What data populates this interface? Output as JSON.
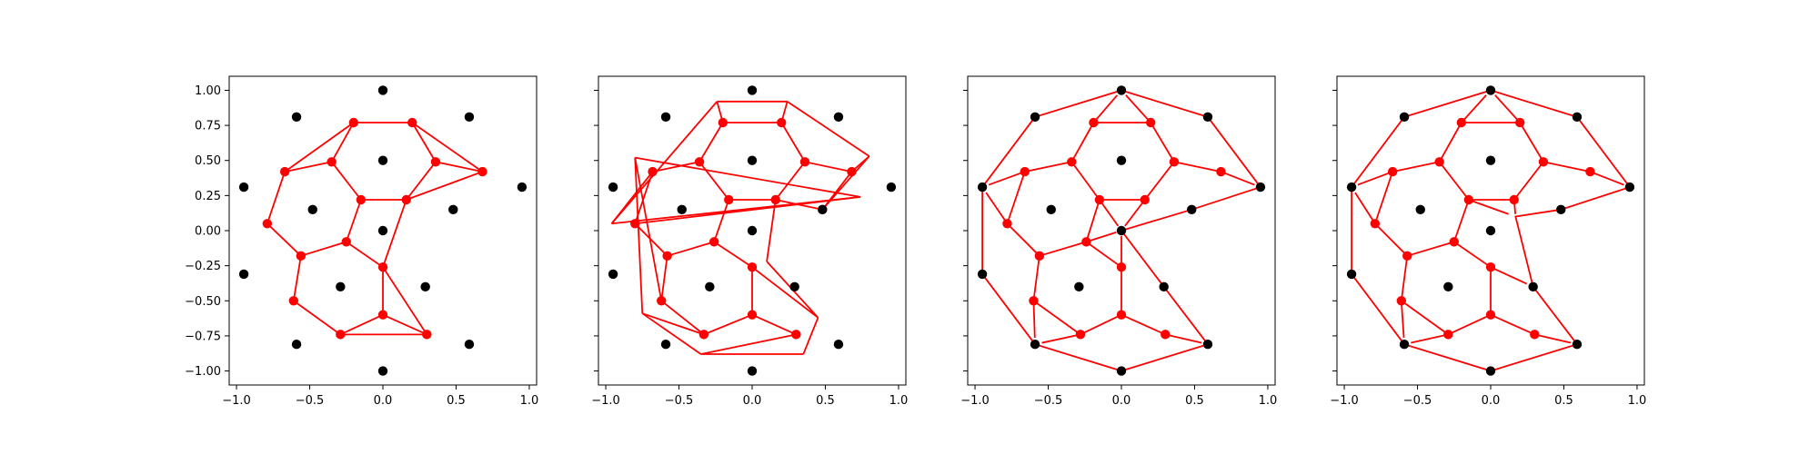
{
  "style": {
    "seed_color": "#000000",
    "vertex_color": "#ff0000",
    "edge_color": "#ff0000",
    "axes_color": "#000000",
    "background": "#ffffff"
  },
  "chart_data": [
    {
      "type": "scatter",
      "panel": 1,
      "title": "",
      "xlabel": "",
      "ylabel": "",
      "xlim": [
        -1.05,
        1.05
      ],
      "ylim": [
        -1.1,
        1.1
      ],
      "xticks": [
        -1.0,
        -0.5,
        0.0,
        0.5,
        1.0
      ],
      "xtick_labels": [
        "−1.0",
        "−0.5",
        "0.0",
        "0.5",
        "1.0"
      ],
      "yticks": [
        -1.0,
        -0.75,
        -0.5,
        -0.25,
        0.0,
        0.25,
        0.5,
        0.75,
        1.0
      ],
      "ytick_labels": [
        "−1.00",
        "−0.75",
        "−0.50",
        "−0.25",
        "0.00",
        "0.25",
        "0.50",
        "0.75",
        "1.00"
      ],
      "show_ytick_labels": true,
      "seed_points": [
        [
          0.0,
          1.0
        ],
        [
          -0.59,
          0.81
        ],
        [
          0.59,
          0.81
        ],
        [
          0.0,
          0.5
        ],
        [
          -0.95,
          0.31
        ],
        [
          0.95,
          0.31
        ],
        [
          -0.48,
          0.15
        ],
        [
          0.48,
          0.15
        ],
        [
          0.0,
          0.0
        ],
        [
          -0.95,
          -0.31
        ],
        [
          -0.29,
          -0.4
        ],
        [
          0.29,
          -0.4
        ],
        [
          -0.59,
          -0.81
        ],
        [
          0.59,
          -0.81
        ],
        [
          0.0,
          -1.0
        ]
      ],
      "vertices": [
        [
          -0.2,
          0.77
        ],
        [
          0.2,
          0.77
        ],
        [
          -0.35,
          0.49
        ],
        [
          0.36,
          0.49
        ],
        [
          -0.67,
          0.42
        ],
        [
          0.68,
          0.42
        ],
        [
          -0.15,
          0.22
        ],
        [
          0.16,
          0.22
        ],
        [
          -0.79,
          0.05
        ],
        [
          -0.56,
          -0.18
        ],
        [
          -0.25,
          -0.08
        ],
        [
          0.0,
          -0.26
        ],
        [
          -0.61,
          -0.5
        ],
        [
          0.0,
          -0.6
        ],
        [
          -0.29,
          -0.74
        ],
        [
          0.3,
          -0.74
        ]
      ],
      "edges": [
        [
          0,
          1
        ],
        [
          0,
          2
        ],
        [
          1,
          3
        ],
        [
          2,
          6
        ],
        [
          3,
          7
        ],
        [
          6,
          7
        ],
        [
          0,
          4
        ],
        [
          1,
          5
        ],
        [
          3,
          5
        ],
        [
          7,
          5
        ],
        [
          2,
          4
        ],
        [
          4,
          8
        ],
        [
          8,
          9
        ],
        [
          9,
          10
        ],
        [
          10,
          6
        ],
        [
          10,
          11
        ],
        [
          7,
          11
        ],
        [
          9,
          12
        ],
        [
          11,
          13
        ],
        [
          11,
          15
        ],
        [
          12,
          14
        ],
        [
          13,
          14
        ],
        [
          13,
          15
        ],
        [
          14,
          15
        ]
      ]
    },
    {
      "type": "scatter",
      "panel": 2,
      "title": "",
      "xlabel": "",
      "ylabel": "",
      "xlim": [
        -1.05,
        1.05
      ],
      "ylim": [
        -1.1,
        1.1
      ],
      "xticks": [
        -1.0,
        -0.5,
        0.0,
        0.5,
        1.0
      ],
      "xtick_labels": [
        "−1.0",
        "−0.5",
        "0.0",
        "0.5",
        "1.0"
      ],
      "yticks": [
        -1.0,
        -0.75,
        -0.5,
        -0.25,
        0.0,
        0.25,
        0.5,
        0.75,
        1.0
      ],
      "ytick_labels": [],
      "show_ytick_labels": false,
      "seed_points": [
        [
          0.0,
          1.0
        ],
        [
          -0.59,
          0.81
        ],
        [
          0.59,
          0.81
        ],
        [
          0.0,
          0.5
        ],
        [
          -0.95,
          0.31
        ],
        [
          0.95,
          0.31
        ],
        [
          -0.48,
          0.15
        ],
        [
          0.48,
          0.15
        ],
        [
          0.0,
          0.0
        ],
        [
          -0.95,
          -0.31
        ],
        [
          -0.29,
          -0.4
        ],
        [
          0.29,
          -0.4
        ],
        [
          -0.59,
          -0.81
        ],
        [
          0.59,
          -0.81
        ],
        [
          0.0,
          -1.0
        ]
      ],
      "vertices": [
        [
          -0.2,
          0.77
        ],
        [
          0.2,
          0.77
        ],
        [
          -0.36,
          0.49
        ],
        [
          0.36,
          0.49
        ],
        [
          -0.68,
          0.42
        ],
        [
          0.68,
          0.42
        ],
        [
          -0.16,
          0.22
        ],
        [
          0.16,
          0.22
        ],
        [
          -0.8,
          0.05
        ],
        [
          -0.58,
          -0.18
        ],
        [
          -0.26,
          -0.08
        ],
        [
          0.0,
          -0.26
        ],
        [
          -0.62,
          -0.5
        ],
        [
          0.0,
          -0.6
        ],
        [
          -0.33,
          -0.74
        ],
        [
          0.3,
          -0.74
        ],
        [
          0.48,
          0.15
        ]
      ],
      "outline": [
        [
          -0.24,
          0.92
        ],
        [
          0.24,
          0.92
        ],
        [
          0.8,
          0.53
        ],
        [
          0.74,
          0.24
        ],
        [
          -0.96,
          0.05
        ],
        [
          -0.8,
          0.52
        ],
        [
          -0.75,
          -0.59
        ],
        [
          -0.35,
          -0.88
        ],
        [
          0.35,
          -0.88
        ],
        [
          0.45,
          -0.62
        ],
        [
          0.3,
          -0.4
        ],
        [
          0.1,
          -0.22
        ]
      ],
      "edges": [
        [
          0,
          1
        ],
        [
          0,
          2
        ],
        [
          1,
          3
        ],
        [
          2,
          6
        ],
        [
          3,
          7
        ],
        [
          6,
          7
        ],
        [
          3,
          5
        ],
        [
          7,
          16
        ],
        [
          16,
          5
        ],
        [
          2,
          4
        ],
        [
          4,
          8
        ],
        [
          8,
          9
        ],
        [
          9,
          10
        ],
        [
          10,
          6
        ],
        [
          10,
          11
        ],
        [
          9,
          12
        ],
        [
          11,
          13
        ],
        [
          12,
          14
        ],
        [
          13,
          14
        ],
        [
          13,
          15
        ],
        [
          0,
          17
        ],
        [
          17,
          18
        ],
        [
          1,
          18
        ],
        [
          18,
          19
        ],
        [
          19,
          16
        ],
        [
          5,
          19
        ],
        [
          17,
          21
        ],
        [
          21,
          20
        ],
        [
          4,
          21
        ],
        [
          8,
          20
        ],
        [
          20,
          22
        ],
        [
          22,
          12
        ],
        [
          22,
          23
        ],
        [
          23,
          24
        ],
        [
          23,
          14
        ],
        [
          24,
          15
        ],
        [
          24,
          25
        ],
        [
          25,
          26
        ],
        [
          26,
          11
        ],
        [
          26,
          28
        ],
        [
          7,
          28
        ]
      ]
    },
    {
      "type": "scatter",
      "panel": 3,
      "title": "",
      "xlabel": "",
      "ylabel": "",
      "xlim": [
        -1.05,
        1.05
      ],
      "ylim": [
        -1.1,
        1.1
      ],
      "xticks": [
        -1.0,
        -0.5,
        0.0,
        0.5,
        1.0
      ],
      "xtick_labels": [
        "−1.0",
        "−0.5",
        "0.0",
        "0.5",
        "1.0"
      ],
      "yticks": [
        -1.0,
        -0.75,
        -0.5,
        -0.25,
        0.0,
        0.25,
        0.5,
        0.75,
        1.0
      ],
      "ytick_labels": [],
      "show_ytick_labels": false,
      "seed_points": [
        [
          0.0,
          1.0
        ],
        [
          -0.59,
          0.81
        ],
        [
          0.59,
          0.81
        ],
        [
          0.0,
          0.5
        ],
        [
          -0.95,
          0.31
        ],
        [
          0.95,
          0.31
        ],
        [
          -0.48,
          0.15
        ],
        [
          0.48,
          0.15
        ],
        [
          0.0,
          0.0
        ],
        [
          -0.95,
          -0.31
        ],
        [
          -0.29,
          -0.4
        ],
        [
          0.29,
          -0.4
        ],
        [
          -0.59,
          -0.81
        ],
        [
          0.59,
          -0.81
        ],
        [
          0.0,
          -1.0
        ]
      ],
      "vertices": [
        [
          -0.19,
          0.77
        ],
        [
          0.2,
          0.77
        ],
        [
          -0.34,
          0.49
        ],
        [
          0.36,
          0.49
        ],
        [
          -0.66,
          0.42
        ],
        [
          0.68,
          0.42
        ],
        [
          -0.15,
          0.22
        ],
        [
          0.16,
          0.22
        ],
        [
          -0.78,
          0.05
        ],
        [
          -0.56,
          -0.18
        ],
        [
          -0.24,
          -0.08
        ],
        [
          0.0,
          -0.26
        ],
        [
          -0.6,
          -0.5
        ],
        [
          0.0,
          -0.6
        ],
        [
          -0.28,
          -0.74
        ],
        [
          0.3,
          -0.74
        ]
      ],
      "hull": [
        [
          0.0,
          1.0
        ],
        [
          0.59,
          0.81
        ],
        [
          0.95,
          0.31
        ],
        [
          0.48,
          0.15
        ],
        [
          0.0,
          0.0
        ],
        [
          0.29,
          -0.4
        ],
        [
          0.59,
          -0.81
        ],
        [
          0.0,
          -1.0
        ],
        [
          -0.59,
          -0.81
        ],
        [
          -0.95,
          -0.31
        ],
        [
          -0.95,
          0.31
        ],
        [
          -0.59,
          0.81
        ]
      ],
      "edges": [
        [
          0,
          1
        ],
        [
          0,
          2
        ],
        [
          1,
          3
        ],
        [
          2,
          6
        ],
        [
          3,
          7
        ],
        [
          6,
          7
        ],
        [
          3,
          5
        ],
        [
          2,
          4
        ],
        [
          4,
          8
        ],
        [
          8,
          9
        ],
        [
          9,
          10
        ],
        [
          10,
          6
        ],
        [
          10,
          11
        ],
        [
          9,
          12
        ],
        [
          11,
          13
        ],
        [
          12,
          14
        ],
        [
          13,
          14
        ],
        [
          13,
          15
        ]
      ]
    },
    {
      "type": "scatter",
      "panel": 4,
      "title": "",
      "xlabel": "",
      "ylabel": "",
      "xlim": [
        -1.05,
        1.05
      ],
      "ylim": [
        -1.1,
        1.1
      ],
      "xticks": [
        -1.0,
        -0.5,
        0.0,
        0.5,
        1.0
      ],
      "xtick_labels": [
        "−1.0",
        "−0.5",
        "0.0",
        "0.5",
        "1.0"
      ],
      "yticks": [
        -1.0,
        -0.75,
        -0.5,
        -0.25,
        0.0,
        0.25,
        0.5,
        0.75,
        1.0
      ],
      "ytick_labels": [],
      "show_ytick_labels": false,
      "seed_points": [
        [
          0.0,
          1.0
        ],
        [
          -0.59,
          0.81
        ],
        [
          0.59,
          0.81
        ],
        [
          0.0,
          0.5
        ],
        [
          -0.95,
          0.31
        ],
        [
          0.95,
          0.31
        ],
        [
          -0.48,
          0.15
        ],
        [
          0.48,
          0.15
        ],
        [
          0.0,
          0.0
        ],
        [
          -0.95,
          -0.31
        ],
        [
          -0.29,
          -0.4
        ],
        [
          0.29,
          -0.4
        ],
        [
          -0.59,
          -0.81
        ],
        [
          0.59,
          -0.81
        ],
        [
          0.0,
          -1.0
        ]
      ],
      "vertices": [
        [
          -0.2,
          0.77
        ],
        [
          0.2,
          0.77
        ],
        [
          -0.35,
          0.49
        ],
        [
          0.36,
          0.49
        ],
        [
          -0.67,
          0.42
        ],
        [
          0.68,
          0.42
        ],
        [
          -0.15,
          0.22
        ],
        [
          0.16,
          0.22
        ],
        [
          -0.79,
          0.05
        ],
        [
          -0.57,
          -0.18
        ],
        [
          -0.25,
          -0.08
        ],
        [
          0.0,
          -0.26
        ],
        [
          -0.61,
          -0.5
        ],
        [
          0.0,
          -0.6
        ],
        [
          -0.29,
          -0.74
        ],
        [
          0.3,
          -0.74
        ]
      ],
      "hull": [
        [
          0.0,
          1.0
        ],
        [
          0.59,
          0.81
        ],
        [
          0.95,
          0.31
        ],
        [
          0.48,
          0.15
        ],
        [
          0.17,
          0.1
        ],
        [
          0.29,
          -0.4
        ],
        [
          0.59,
          -0.81
        ],
        [
          0.0,
          -1.0
        ],
        [
          -0.59,
          -0.81
        ],
        [
          -0.95,
          -0.31
        ],
        [
          -0.95,
          0.31
        ],
        [
          -0.59,
          0.81
        ]
      ],
      "edges": [
        [
          0,
          1
        ],
        [
          0,
          2
        ],
        [
          1,
          3
        ],
        [
          2,
          6
        ],
        [
          3,
          7
        ],
        [
          6,
          7
        ],
        [
          3,
          5
        ],
        [
          2,
          4
        ],
        [
          4,
          8
        ],
        [
          8,
          9
        ],
        [
          9,
          10
        ],
        [
          10,
          6
        ],
        [
          10,
          11
        ],
        [
          9,
          12
        ],
        [
          11,
          13
        ],
        [
          12,
          14
        ],
        [
          13,
          14
        ],
        [
          13,
          15
        ]
      ]
    }
  ]
}
